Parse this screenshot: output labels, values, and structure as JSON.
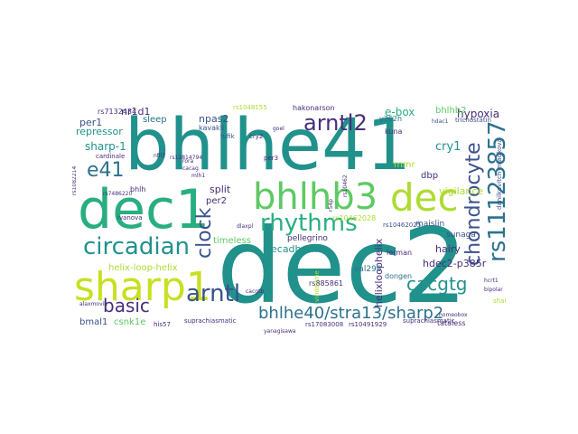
{
  "palette": {
    "dark_purple": "#472d7b",
    "indigo": "#3b528b",
    "blue": "#2c728e",
    "teal": "#21918c",
    "green": "#28ae80",
    "light_green": "#5ec962",
    "lime": "#addc30",
    "yellow": "#c8e020",
    "grey": "#aaaaaa"
  },
  "words": [
    {
      "id": "dec2",
      "text": "dec2"
    },
    {
      "id": "bhlhe41",
      "text": "bhlhe41"
    },
    {
      "id": "dec1",
      "text": "dec1"
    },
    {
      "id": "sharp1",
      "text": "sharp1"
    },
    {
      "id": "bhlhb3",
      "text": "bhlhb3"
    },
    {
      "id": "dec",
      "text": "dec"
    },
    {
      "id": "chondrocyte",
      "text": "chondrocyte"
    },
    {
      "id": "rs11123857",
      "text": "rs11123857"
    },
    {
      "id": "arntl2",
      "text": "arntl2"
    },
    {
      "id": "rhythms",
      "text": "rhythms"
    },
    {
      "id": "circadian",
      "text": "circadian"
    },
    {
      "id": "arntl",
      "text": "arntl"
    },
    {
      "id": "e41",
      "text": "e41"
    },
    {
      "id": "clock",
      "text": "clock"
    },
    {
      "id": "basic",
      "text": "basic"
    },
    {
      "id": "bhlhe40",
      "text": "bhlhe40/stra13/sharp2"
    },
    {
      "id": "cacgtg",
      "text": "cacgtg"
    },
    {
      "id": "cry1",
      "text": "cry1"
    },
    {
      "id": "e-box",
      "text": "e-box"
    },
    {
      "id": "hypoxia",
      "text": "hypoxia"
    },
    {
      "id": "bhlhb2",
      "text": "bhlhb2"
    },
    {
      "id": "sharp-1",
      "text": "sharp-1"
    },
    {
      "id": "repressor",
      "text": "repressor"
    },
    {
      "id": "per1",
      "text": "per1"
    },
    {
      "id": "nr1d1",
      "text": "nr1d1"
    },
    {
      "id": "npas2",
      "text": "npas2"
    },
    {
      "id": "sleep",
      "text": "sleep"
    },
    {
      "id": "kavakli",
      "text": "kavakli"
    },
    {
      "id": "tufik",
      "text": "tufik"
    },
    {
      "id": "rs7132434",
      "text": "rs7132434"
    },
    {
      "id": "hakonarson",
      "text": "hakonarson"
    },
    {
      "id": "y362h",
      "text": "y362h"
    },
    {
      "id": "kuna",
      "text": "kuna"
    },
    {
      "id": "hdac1",
      "text": "hdac1"
    },
    {
      "id": "trichostatin",
      "text": "trichostatin"
    },
    {
      "id": "danilkovitch",
      "text": "danilkovitch-miagkova"
    },
    {
      "id": "dbp",
      "text": "dbp"
    },
    {
      "id": "vigilance",
      "text": "vigilance"
    },
    {
      "id": "mmr",
      "text": "mmr"
    },
    {
      "id": "split",
      "text": "split"
    },
    {
      "id": "per2",
      "text": "per2"
    },
    {
      "id": "ecadherin",
      "text": "ecadherin"
    },
    {
      "id": "rs10462028",
      "text": "rs10462028"
    },
    {
      "id": "timeless",
      "text": "timeless"
    },
    {
      "id": "helix-loop-helix",
      "text": "helix-loop-helix"
    },
    {
      "id": "bmal1",
      "text": "bmal1"
    },
    {
      "id": "csnk1e",
      "text": "csnk1e"
    },
    {
      "id": "pellegrino",
      "text": "pellegrino"
    },
    {
      "id": "rs10462025",
      "text": "rs10462025"
    },
    {
      "id": "maislin",
      "text": "maislin"
    },
    {
      "id": "sunaga",
      "text": "sunaga"
    },
    {
      "id": "hairy",
      "text": "hairy"
    },
    {
      "id": "hdec2",
      "text": "hdec2-p385r"
    },
    {
      "id": "helixloophelix",
      "text": "helixloophelix"
    },
    {
      "id": "dongen",
      "text": "dongen"
    },
    {
      "id": "val298",
      "text": "val298"
    },
    {
      "id": "lerman",
      "text": "lerman"
    },
    {
      "id": "rs885861",
      "text": "rs885861"
    },
    {
      "id": "sharp1b",
      "text": "sharp1"
    },
    {
      "id": "rs17083008",
      "text": "rs17083008"
    },
    {
      "id": "rs10491929",
      "text": "rs10491929"
    },
    {
      "id": "suprachiasmatic",
      "text": "suprachiasmatic"
    },
    {
      "id": "suprachiasmaticb",
      "text": "suprachiasmatic"
    },
    {
      "id": "tataless",
      "text": "tataless"
    },
    {
      "id": "his57",
      "text": "his57"
    },
    {
      "id": "ivanova",
      "text": "ivanova"
    },
    {
      "id": "cardinale",
      "text": "cardinale"
    },
    {
      "id": "bhlh",
      "text": "bhlh"
    },
    {
      "id": "rs7486220",
      "text": "rs7486220"
    },
    {
      "id": "cry2",
      "text": "cry2"
    },
    {
      "id": "per3",
      "text": "per3"
    },
    {
      "id": "hcrt1",
      "text": "hcrt1"
    },
    {
      "id": "bipolar",
      "text": "bipolar"
    },
    {
      "id": "cacgtb",
      "text": "cacgtb"
    },
    {
      "id": "goel",
      "text": "goel"
    },
    {
      "id": "homeobox",
      "text": "homeobox"
    },
    {
      "id": "vindeirine",
      "text": "vindeirine"
    },
    {
      "id": "yanagisawa",
      "text": "yanagisawa"
    },
    {
      "id": "rs1048155",
      "text": "rs1048155"
    },
    {
      "id": "rs12814794",
      "text": "rs12814794"
    },
    {
      "id": "alaxmovik",
      "text": "alaxmovik"
    },
    {
      "id": "rs1082214",
      "text": "rs1082214"
    },
    {
      "id": "rora",
      "text": "rora"
    },
    {
      "id": "cacag",
      "text": "cacag"
    },
    {
      "id": "nfil3",
      "text": "nfil3"
    },
    {
      "id": "r54p",
      "text": "r54p"
    },
    {
      "id": "mlh1",
      "text": "mlh1"
    },
    {
      "id": "dlaxpl",
      "text": "dlaxpl"
    },
    {
      "id": "rs10462",
      "text": "rs10462"
    }
  ]
}
